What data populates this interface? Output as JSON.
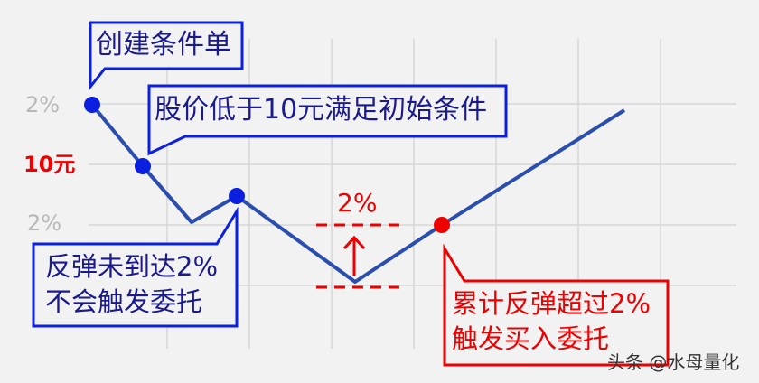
{
  "axis_labels": {
    "upper": "2%",
    "middle": "10元",
    "lower": "2%"
  },
  "callouts": {
    "create": "创建条件单",
    "condition": "股价低于10元满足初始条件",
    "no_trigger_line1": "反弹未到达2%",
    "no_trigger_line2": "不会触发委托",
    "trigger_line1": "累计反弹超过2%",
    "trigger_line2": "触发买入委托"
  },
  "rebound_label": "2%",
  "watermark": "头条 @水母量化",
  "colors": {
    "line": "#2a4db0",
    "point": "#0a1fe0",
    "callout_border": "#0a1fe0",
    "callout_text": "#1a1a8c",
    "highlight": "#ee0000",
    "grid": "#d6d6d6",
    "background": "#f2f2f2"
  }
}
